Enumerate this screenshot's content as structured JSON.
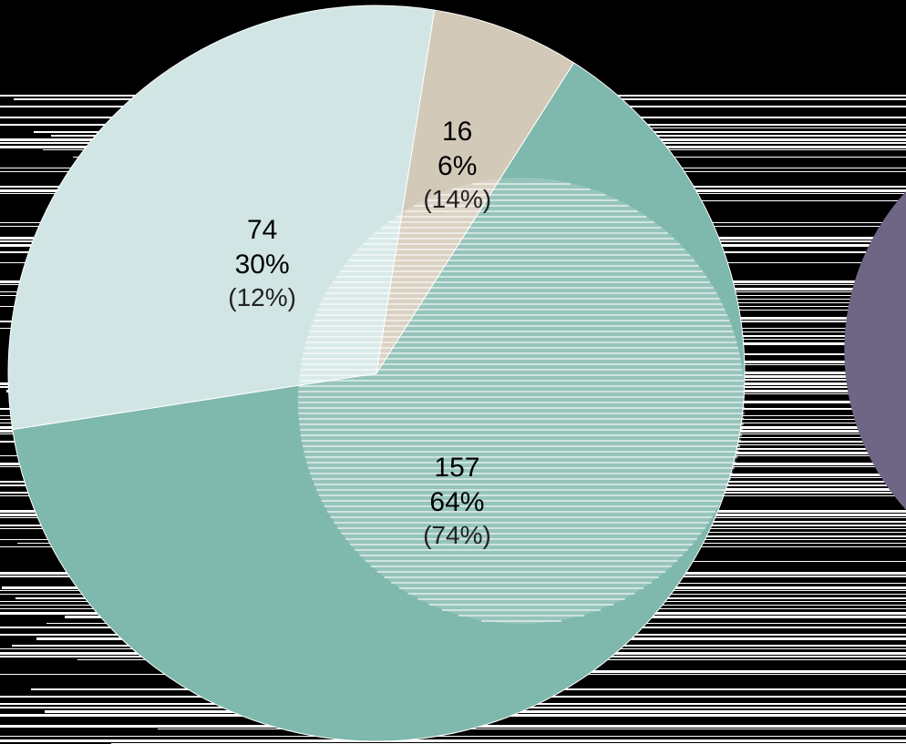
{
  "chart_data": {
    "type": "pie",
    "slices": [
      {
        "value": 157,
        "percent": "64%",
        "secondary": "(74%)",
        "color": "#7fb8ad"
      },
      {
        "value": 74,
        "percent": "30%",
        "secondary": "(12%)",
        "color": "#d1e6e4"
      },
      {
        "value": 16,
        "percent": "6%",
        "secondary": "(14%)",
        "color": "#d3c9b8"
      }
    ],
    "background": "#000000",
    "stripe_color": "#ffffff",
    "side_slice_color": "#6f6584"
  }
}
